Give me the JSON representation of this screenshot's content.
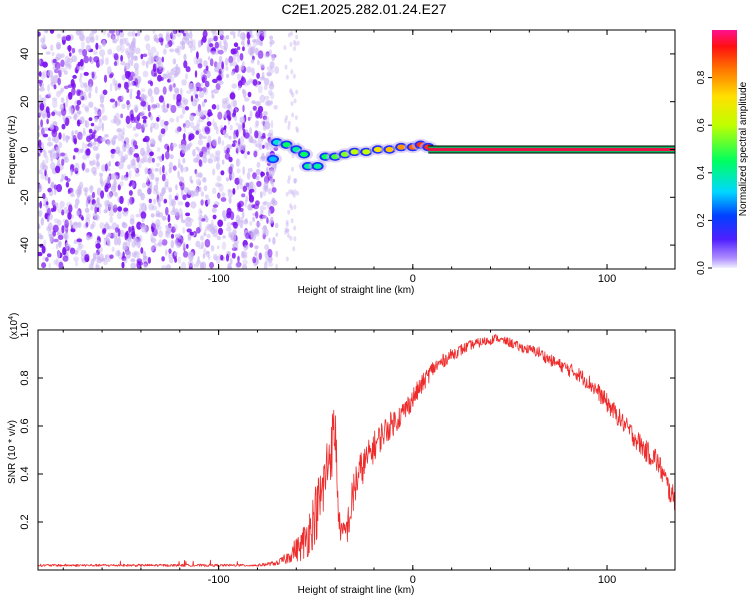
{
  "title": "C2E1.2025.282.01.24.E27",
  "colors": {
    "trace": "#ee2c2c",
    "speckle_strong": "#7a10f0",
    "speckle_light": "#c9b4f2",
    "line_core": "#e8154a",
    "line_edge": "#00c060"
  },
  "colorbar": {
    "label": "Normalized spectral amplitude",
    "ticks": [
      "0.0",
      "0.2",
      "0.4",
      "0.6",
      "0.8"
    ],
    "tick_values": [
      0.0,
      0.2,
      0.4,
      0.6,
      0.8
    ]
  },
  "chart_data": [
    {
      "type": "heatmap",
      "name": "spectrogram",
      "xlabel": "Height of straight line (km)",
      "ylabel": "Frequency (Hz)",
      "xlim": [
        -193,
        135
      ],
      "ylim": [
        -50,
        50
      ],
      "xticks": [
        -100,
        0,
        100
      ],
      "xtick_labels": [
        "-100",
        "0",
        "100"
      ],
      "yticks": [
        -40,
        -20,
        0,
        20,
        40
      ],
      "ytick_labels": [
        "-40",
        "-20",
        "0",
        "20",
        "40"
      ],
      "noise_region_x": [
        -193,
        -70
      ],
      "noise_amplitude": 0.2,
      "transition_blobs": [
        {
          "x": -70,
          "y": 3,
          "a": 0.35
        },
        {
          "x": -65,
          "y": 2,
          "a": 0.45
        },
        {
          "x": -60,
          "y": 0,
          "a": 0.4
        },
        {
          "x": -56,
          "y": -2,
          "a": 0.45
        },
        {
          "x": -72,
          "y": -4,
          "a": 0.3
        },
        {
          "x": -54,
          "y": -7,
          "a": 0.4
        },
        {
          "x": -49,
          "y": -7,
          "a": 0.4
        },
        {
          "x": -45,
          "y": -3,
          "a": 0.45
        },
        {
          "x": -40,
          "y": -3,
          "a": 0.5
        },
        {
          "x": -35,
          "y": -2,
          "a": 0.55
        },
        {
          "x": -30,
          "y": -1,
          "a": 0.6
        },
        {
          "x": -24,
          "y": -1,
          "a": 0.6
        },
        {
          "x": -18,
          "y": 0,
          "a": 0.7
        },
        {
          "x": -12,
          "y": 0,
          "a": 0.75
        },
        {
          "x": -6,
          "y": 1,
          "a": 0.8
        },
        {
          "x": 0,
          "y": 1,
          "a": 0.85
        },
        {
          "x": 4,
          "y": 2,
          "a": 0.9
        },
        {
          "x": 8,
          "y": 1,
          "a": 0.9
        }
      ],
      "carrier_line": {
        "x_start": 8,
        "x_end": 135,
        "freq": 0,
        "amplitude": 1.0
      }
    },
    {
      "type": "line",
      "name": "snr",
      "xlabel": "Height of straight line (km)",
      "ylabel": "SNR (10 * v/v)",
      "scale_label": "(x10",
      "scale_exp": "4",
      "xlim": [
        -193,
        135
      ],
      "ylim": [
        0,
        1.0
      ],
      "xticks": [
        -100,
        0,
        100
      ],
      "xtick_labels": [
        "-100",
        "0",
        "100"
      ],
      "yticks": [
        0.2,
        0.4,
        0.6,
        0.8,
        1.0
      ],
      "ytick_labels": [
        "0.2",
        "0.4",
        "0.6",
        "0.8",
        "1.0"
      ],
      "series": [
        {
          "name": "SNR",
          "x": [
            -193,
            -150,
            -100,
            -80,
            -70,
            -65,
            -62,
            -58,
            -55,
            -52,
            -50,
            -47,
            -45,
            -43,
            -41,
            -40,
            -39,
            -38,
            -36,
            -34,
            -32,
            -30,
            -27,
            -25,
            -20,
            -15,
            -10,
            -5,
            0,
            5,
            10,
            15,
            20,
            25,
            30,
            35,
            40,
            43,
            45,
            50,
            55,
            60,
            65,
            70,
            75,
            80,
            85,
            90,
            95,
            100,
            105,
            110,
            115,
            120,
            125,
            128,
            130,
            133,
            135
          ],
          "values": [
            0.02,
            0.02,
            0.02,
            0.02,
            0.03,
            0.05,
            0.08,
            0.1,
            0.14,
            0.2,
            0.25,
            0.32,
            0.4,
            0.5,
            0.55,
            0.62,
            0.4,
            0.2,
            0.15,
            0.18,
            0.25,
            0.36,
            0.42,
            0.45,
            0.52,
            0.58,
            0.62,
            0.66,
            0.72,
            0.78,
            0.84,
            0.87,
            0.9,
            0.92,
            0.94,
            0.95,
            0.96,
            0.97,
            0.96,
            0.95,
            0.93,
            0.92,
            0.91,
            0.88,
            0.86,
            0.84,
            0.82,
            0.79,
            0.75,
            0.7,
            0.65,
            0.6,
            0.55,
            0.5,
            0.47,
            0.42,
            0.38,
            0.32,
            0.3
          ],
          "noise": [
            0.01,
            0.01,
            0.01,
            0.01,
            0.02,
            0.05,
            0.08,
            0.12,
            0.18,
            0.22,
            0.25,
            0.28,
            0.3,
            0.25,
            0.3,
            0.3,
            0.2,
            0.12,
            0.1,
            0.14,
            0.18,
            0.2,
            0.16,
            0.14,
            0.13,
            0.12,
            0.11,
            0.1,
            0.09,
            0.08,
            0.07,
            0.06,
            0.05,
            0.05,
            0.04,
            0.04,
            0.04,
            0.03,
            0.03,
            0.04,
            0.04,
            0.04,
            0.05,
            0.05,
            0.05,
            0.06,
            0.06,
            0.07,
            0.07,
            0.08,
            0.08,
            0.08,
            0.09,
            0.09,
            0.1,
            0.1,
            0.1,
            0.1,
            0.1
          ]
        }
      ]
    }
  ]
}
